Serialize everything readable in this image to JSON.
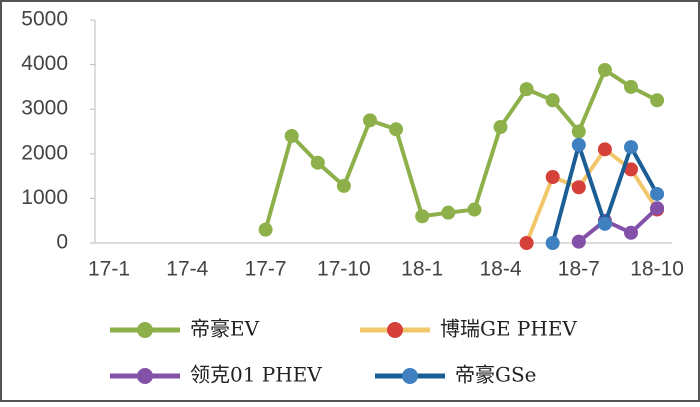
{
  "chart_data": {
    "type": "line",
    "categories": [
      "17-1",
      null,
      null,
      "17-4",
      null,
      null,
      "17-7",
      null,
      null,
      "17-10",
      null,
      null,
      "18-1",
      null,
      null,
      "18-4",
      null,
      null,
      "18-7",
      null,
      null,
      "18-10"
    ],
    "ylim": [
      0,
      5000
    ],
    "yticks": [
      0,
      1000,
      2000,
      3000,
      4000,
      5000
    ],
    "series": [
      {
        "name": "帝豪EV",
        "color": "#8db04a",
        "marker_color": "#8db04a",
        "values": [
          null,
          null,
          null,
          null,
          null,
          null,
          300,
          2400,
          1800,
          1280,
          2750,
          2550,
          600,
          680,
          750,
          2600,
          3450,
          3200,
          2500,
          3880,
          3500,
          3200
        ]
      },
      {
        "name": "博瑞GE PHEV",
        "color": "#f2c76b",
        "marker_color": "#d6403a",
        "values": [
          null,
          null,
          null,
          null,
          null,
          null,
          null,
          null,
          null,
          null,
          null,
          null,
          null,
          null,
          null,
          null,
          0,
          1480,
          1250,
          2100,
          1650,
          750
        ]
      },
      {
        "name": "领克01 PHEV",
        "color": "#8352a8",
        "marker_color": "#8352a8",
        "values": [
          null,
          null,
          null,
          null,
          null,
          null,
          null,
          null,
          null,
          null,
          null,
          null,
          null,
          null,
          null,
          null,
          null,
          null,
          30,
          500,
          230,
          780
        ]
      },
      {
        "name": "帝豪GSe",
        "color": "#1b5e96",
        "marker_color": "#3f80c0",
        "values": [
          null,
          null,
          null,
          null,
          null,
          null,
          null,
          null,
          null,
          null,
          null,
          null,
          null,
          null,
          null,
          null,
          null,
          0,
          2200,
          430,
          2150,
          1100
        ]
      }
    ]
  }
}
